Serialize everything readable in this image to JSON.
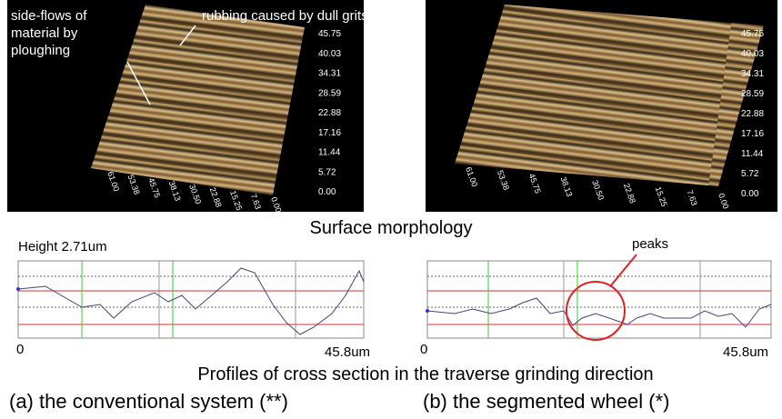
{
  "figure": {
    "surface_caption": "Surface morphology",
    "profile_caption": "Profiles of cross section in the traverse grinding direction",
    "peaks_label": "peaks",
    "panels": [
      {
        "surface": {
          "z_labels": [
            "45.75",
            "40.03",
            "34.31",
            "28.59",
            "22.88",
            "17.16",
            "11.44",
            "5.72",
            "0.00"
          ],
          "x_labels": [
            "61.00",
            "53.38",
            "45.75",
            "38.13",
            "30.50",
            "22.88",
            "15.25",
            "7.63",
            "0.00"
          ],
          "annotations": {
            "rubbing": "rubbing caused by dull grits",
            "side_flows": [
              "side-flows of",
              "material by",
              "ploughing"
            ]
          }
        },
        "profile": {
          "height_label": "Height 2.71um",
          "x_start": "0",
          "x_end": "45.8um"
        },
        "caption": "(a) the conventional system  (**)"
      },
      {
        "surface": {
          "z_labels": [
            "45.75",
            "40.03",
            "34.31",
            "28.59",
            "22.88",
            "17.16",
            "11.44",
            "5.72",
            "0.00"
          ],
          "x_labels": [
            "61.00",
            "53.38",
            "45.75",
            "38.13",
            "30.50",
            "22.88",
            "15.25",
            "7.63",
            "0.00"
          ]
        },
        "profile": {
          "x_start": "0",
          "x_end": "45.8um"
        },
        "caption": "(b) the segmented wheel (*)"
      }
    ]
  }
}
